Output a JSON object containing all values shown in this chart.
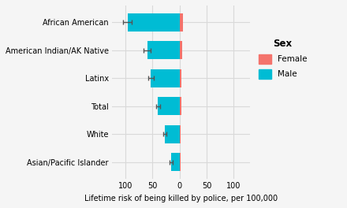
{
  "categories": [
    "Asian/Pacific Islander",
    "White",
    "Total",
    "Latinx",
    "American Indian/AK Native",
    "African American"
  ],
  "male_values": [
    16,
    28,
    40,
    53,
    60,
    96
  ],
  "female_values": [
    1.8,
    2.5,
    3.2,
    3.5,
    4.5,
    5.5
  ],
  "male_errors": [
    3,
    3,
    4,
    5,
    7,
    8
  ],
  "female_color": "#F4736C",
  "male_color": "#00BCD4",
  "bg_color": "#F5F5F5",
  "grid_color": "#D9D9D9",
  "legend_title": "Sex",
  "xlabel": "Lifetime risk of being killed by police, per 100,000",
  "legend_female": "Female",
  "legend_male": "Male",
  "xlim": [
    -125,
    130
  ],
  "xticks": [
    -100,
    -50,
    0,
    50,
    100
  ],
  "xticklabels": [
    "100",
    "50",
    "0",
    "50",
    "100"
  ]
}
